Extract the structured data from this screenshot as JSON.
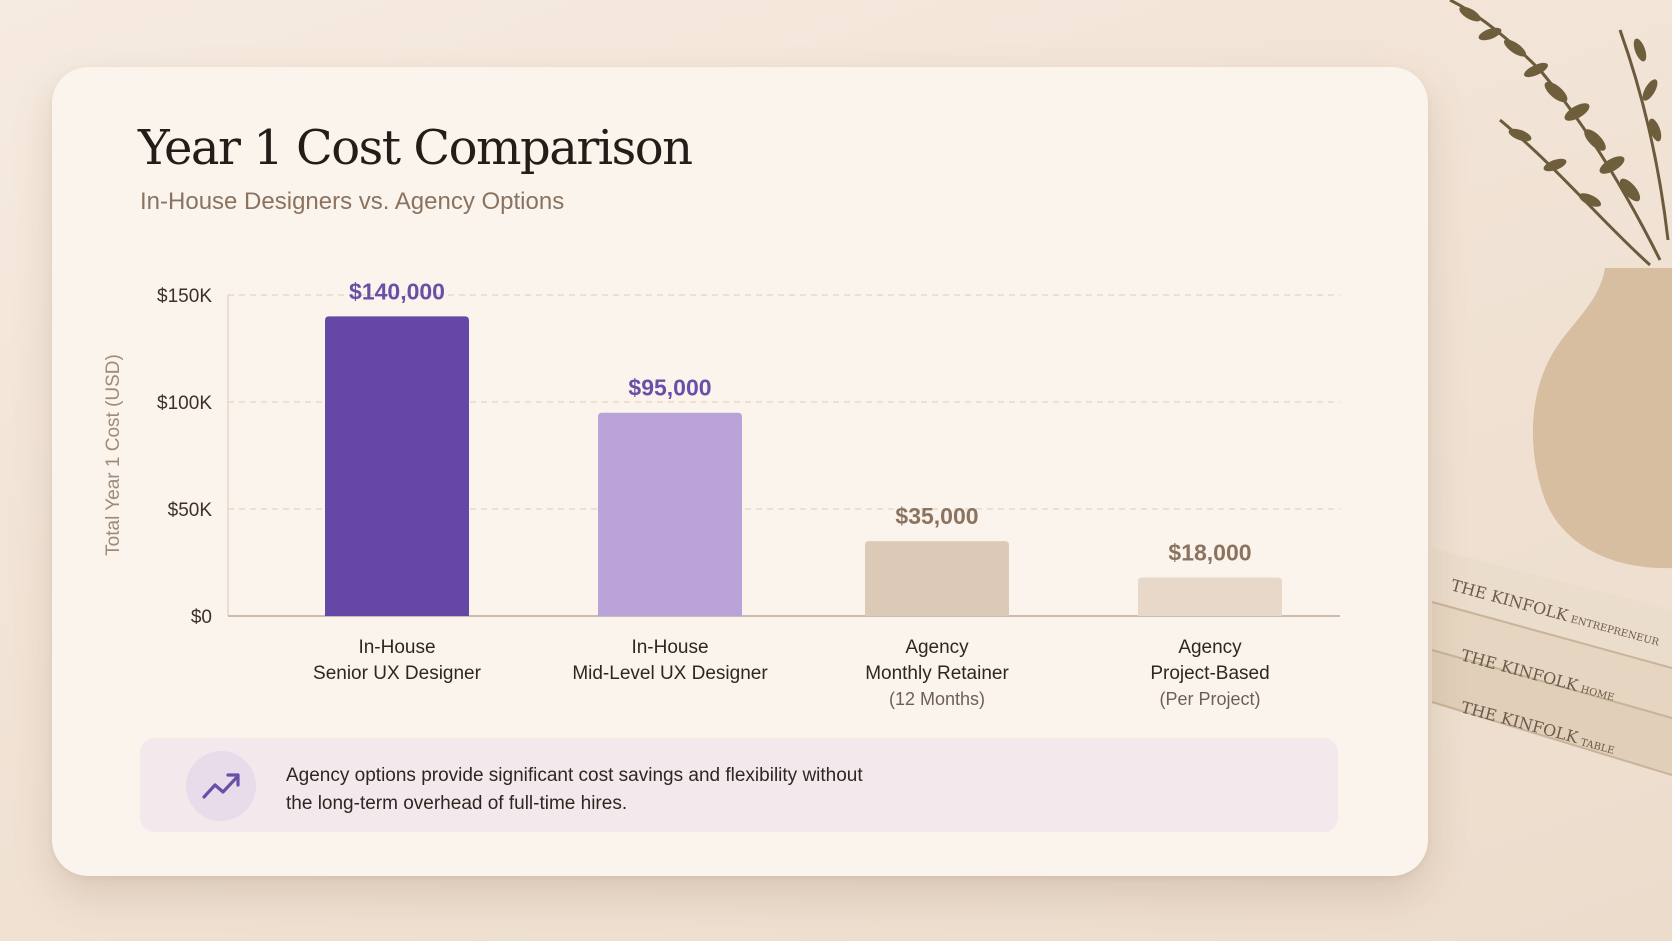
{
  "slide": {
    "title": "Year 1 Cost Comparison",
    "subtitle": "In-House Designers vs. Agency Options",
    "insight": {
      "icon": "trending-up-icon",
      "text": "Agency options provide significant cost savings and flexibility without the long-term overhead of full-time hires."
    }
  },
  "colors": {
    "senior": "#6547a6",
    "mid": "#b9a3d8",
    "retainer": "#ddcab6",
    "project": "#e7d8c9",
    "label_purple": "#6a4fa8",
    "label_brown": "#8a735f"
  },
  "decor": {
    "books": [
      {
        "brand": "THE KINFOLK",
        "edition": "ENTREPRENEUR"
      },
      {
        "brand": "THE KINFOLK",
        "edition": "HOME"
      },
      {
        "brand": "THE KINFOLK",
        "edition": "TABLE"
      }
    ]
  },
  "chart_data": {
    "type": "bar",
    "ylabel": "Total Year 1 Cost (USD)",
    "ylim": [
      0,
      150000
    ],
    "yticks": [
      {
        "value": 0,
        "label": "$0"
      },
      {
        "value": 50000,
        "label": "$50K"
      },
      {
        "value": 100000,
        "label": "$100K"
      },
      {
        "value": 150000,
        "label": "$150K"
      }
    ],
    "grid": true,
    "categories": [
      {
        "lines": [
          "In-House",
          "Senior UX Designer"
        ],
        "note": ""
      },
      {
        "lines": [
          "In-House",
          "Mid-Level UX Designer"
        ],
        "note": ""
      },
      {
        "lines": [
          "Agency",
          "Monthly Retainer"
        ],
        "note": "(12 Months)"
      },
      {
        "lines": [
          "Agency",
          "Project-Based"
        ],
        "note": "(Per Project)"
      }
    ],
    "values": [
      140000,
      95000,
      35000,
      18000
    ],
    "data_labels": [
      "$140,000",
      "$95,000",
      "$35,000",
      "$18,000"
    ],
    "bar_colors": [
      "#6547a6",
      "#b9a3d8",
      "#ddcab6",
      "#e7d8c9"
    ],
    "label_colors": [
      "#6a4fa8",
      "#6a4fa8",
      "#8a735f",
      "#8a735f"
    ]
  }
}
